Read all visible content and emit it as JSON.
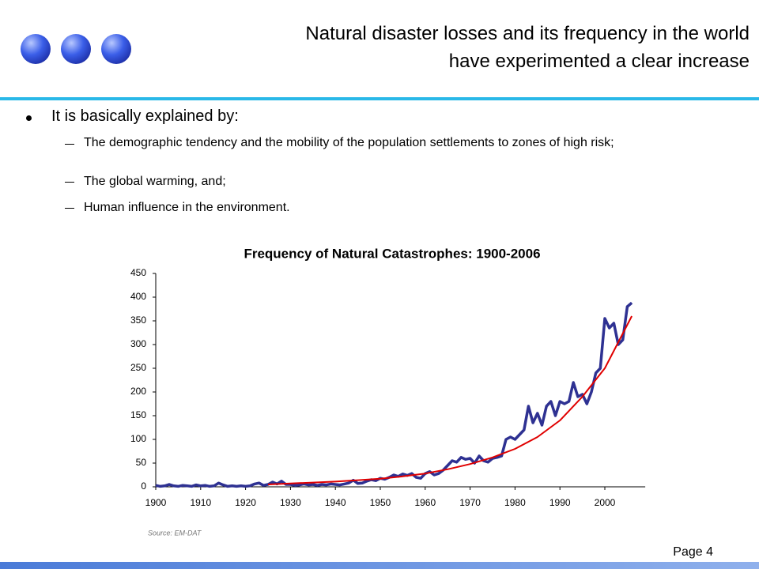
{
  "slide": {
    "title": [
      "Natural disaster losses and its frequency in the world",
      "have experimented a clear increase"
    ],
    "bullet": "It is basically explained by:",
    "subbullets": [
      "The demographic tendency and the mobility of the population settlements to zones of high risk;",
      "The global warming, and;",
      "Human influence in the environment."
    ],
    "page": "Page 4"
  },
  "chart_data": {
    "type": "line",
    "title": "Frequency of Natural Catastrophes: 1900-2006",
    "source": "Source: EM-DAT",
    "x": [
      1900,
      1901,
      1902,
      1903,
      1904,
      1905,
      1906,
      1907,
      1908,
      1909,
      1910,
      1911,
      1912,
      1913,
      1914,
      1915,
      1916,
      1917,
      1918,
      1919,
      1920,
      1921,
      1922,
      1923,
      1924,
      1925,
      1926,
      1927,
      1928,
      1929,
      1930,
      1931,
      1932,
      1933,
      1934,
      1935,
      1936,
      1937,
      1938,
      1939,
      1940,
      1941,
      1942,
      1943,
      1944,
      1945,
      1946,
      1947,
      1948,
      1949,
      1950,
      1951,
      1952,
      1953,
      1954,
      1955,
      1956,
      1957,
      1958,
      1959,
      1960,
      1961,
      1962,
      1963,
      1964,
      1965,
      1966,
      1967,
      1968,
      1969,
      1970,
      1971,
      1972,
      1973,
      1974,
      1975,
      1976,
      1977,
      1978,
      1979,
      1980,
      1981,
      1982,
      1983,
      1984,
      1985,
      1986,
      1987,
      1988,
      1989,
      1990,
      1991,
      1992,
      1993,
      1994,
      1995,
      1996,
      1997,
      1998,
      1999,
      2000,
      2001,
      2002,
      2003,
      2004,
      2005,
      2006
    ],
    "series": [
      {
        "color": "#2e3192",
        "values": [
          3,
          1,
          2,
          5,
          2,
          1,
          3,
          2,
          1,
          4,
          2,
          3,
          1,
          2,
          8,
          4,
          1,
          2,
          1,
          2,
          1,
          2,
          6,
          8,
          3,
          5,
          10,
          6,
          12,
          5,
          5,
          3,
          4,
          6,
          4,
          5,
          3,
          5,
          4,
          6,
          5,
          4,
          6,
          8,
          14,
          7,
          8,
          12,
          15,
          13,
          18,
          16,
          20,
          25,
          22,
          27,
          24,
          28,
          20,
          18,
          28,
          32,
          25,
          28,
          35,
          45,
          55,
          52,
          62,
          58,
          60,
          50,
          65,
          55,
          52,
          60,
          62,
          65,
          100,
          105,
          100,
          110,
          120,
          170,
          135,
          155,
          130,
          170,
          180,
          150,
          180,
          175,
          180,
          220,
          190,
          195,
          175,
          200,
          240,
          250,
          355,
          335,
          345,
          300,
          310,
          380,
          388
        ]
      },
      {
        "color": "#e00000",
        "x": [
          1925,
          1930,
          1935,
          1940,
          1945,
          1950,
          1955,
          1960,
          1965,
          1970,
          1975,
          1980,
          1985,
          1990,
          1995,
          2000,
          2006
        ],
        "values": [
          5,
          7,
          9,
          11,
          14,
          17,
          22,
          28,
          37,
          48,
          62,
          80,
          105,
          140,
          190,
          250,
          360
        ]
      }
    ],
    "xlim": [
      1900,
      2009
    ],
    "ylim": [
      0,
      450
    ],
    "xticks": [
      1900,
      1910,
      1920,
      1930,
      1940,
      1950,
      1960,
      1970,
      1980,
      1990,
      2000
    ],
    "yticks": [
      0,
      50,
      100,
      150,
      200,
      250,
      300,
      350,
      400,
      450
    ]
  }
}
